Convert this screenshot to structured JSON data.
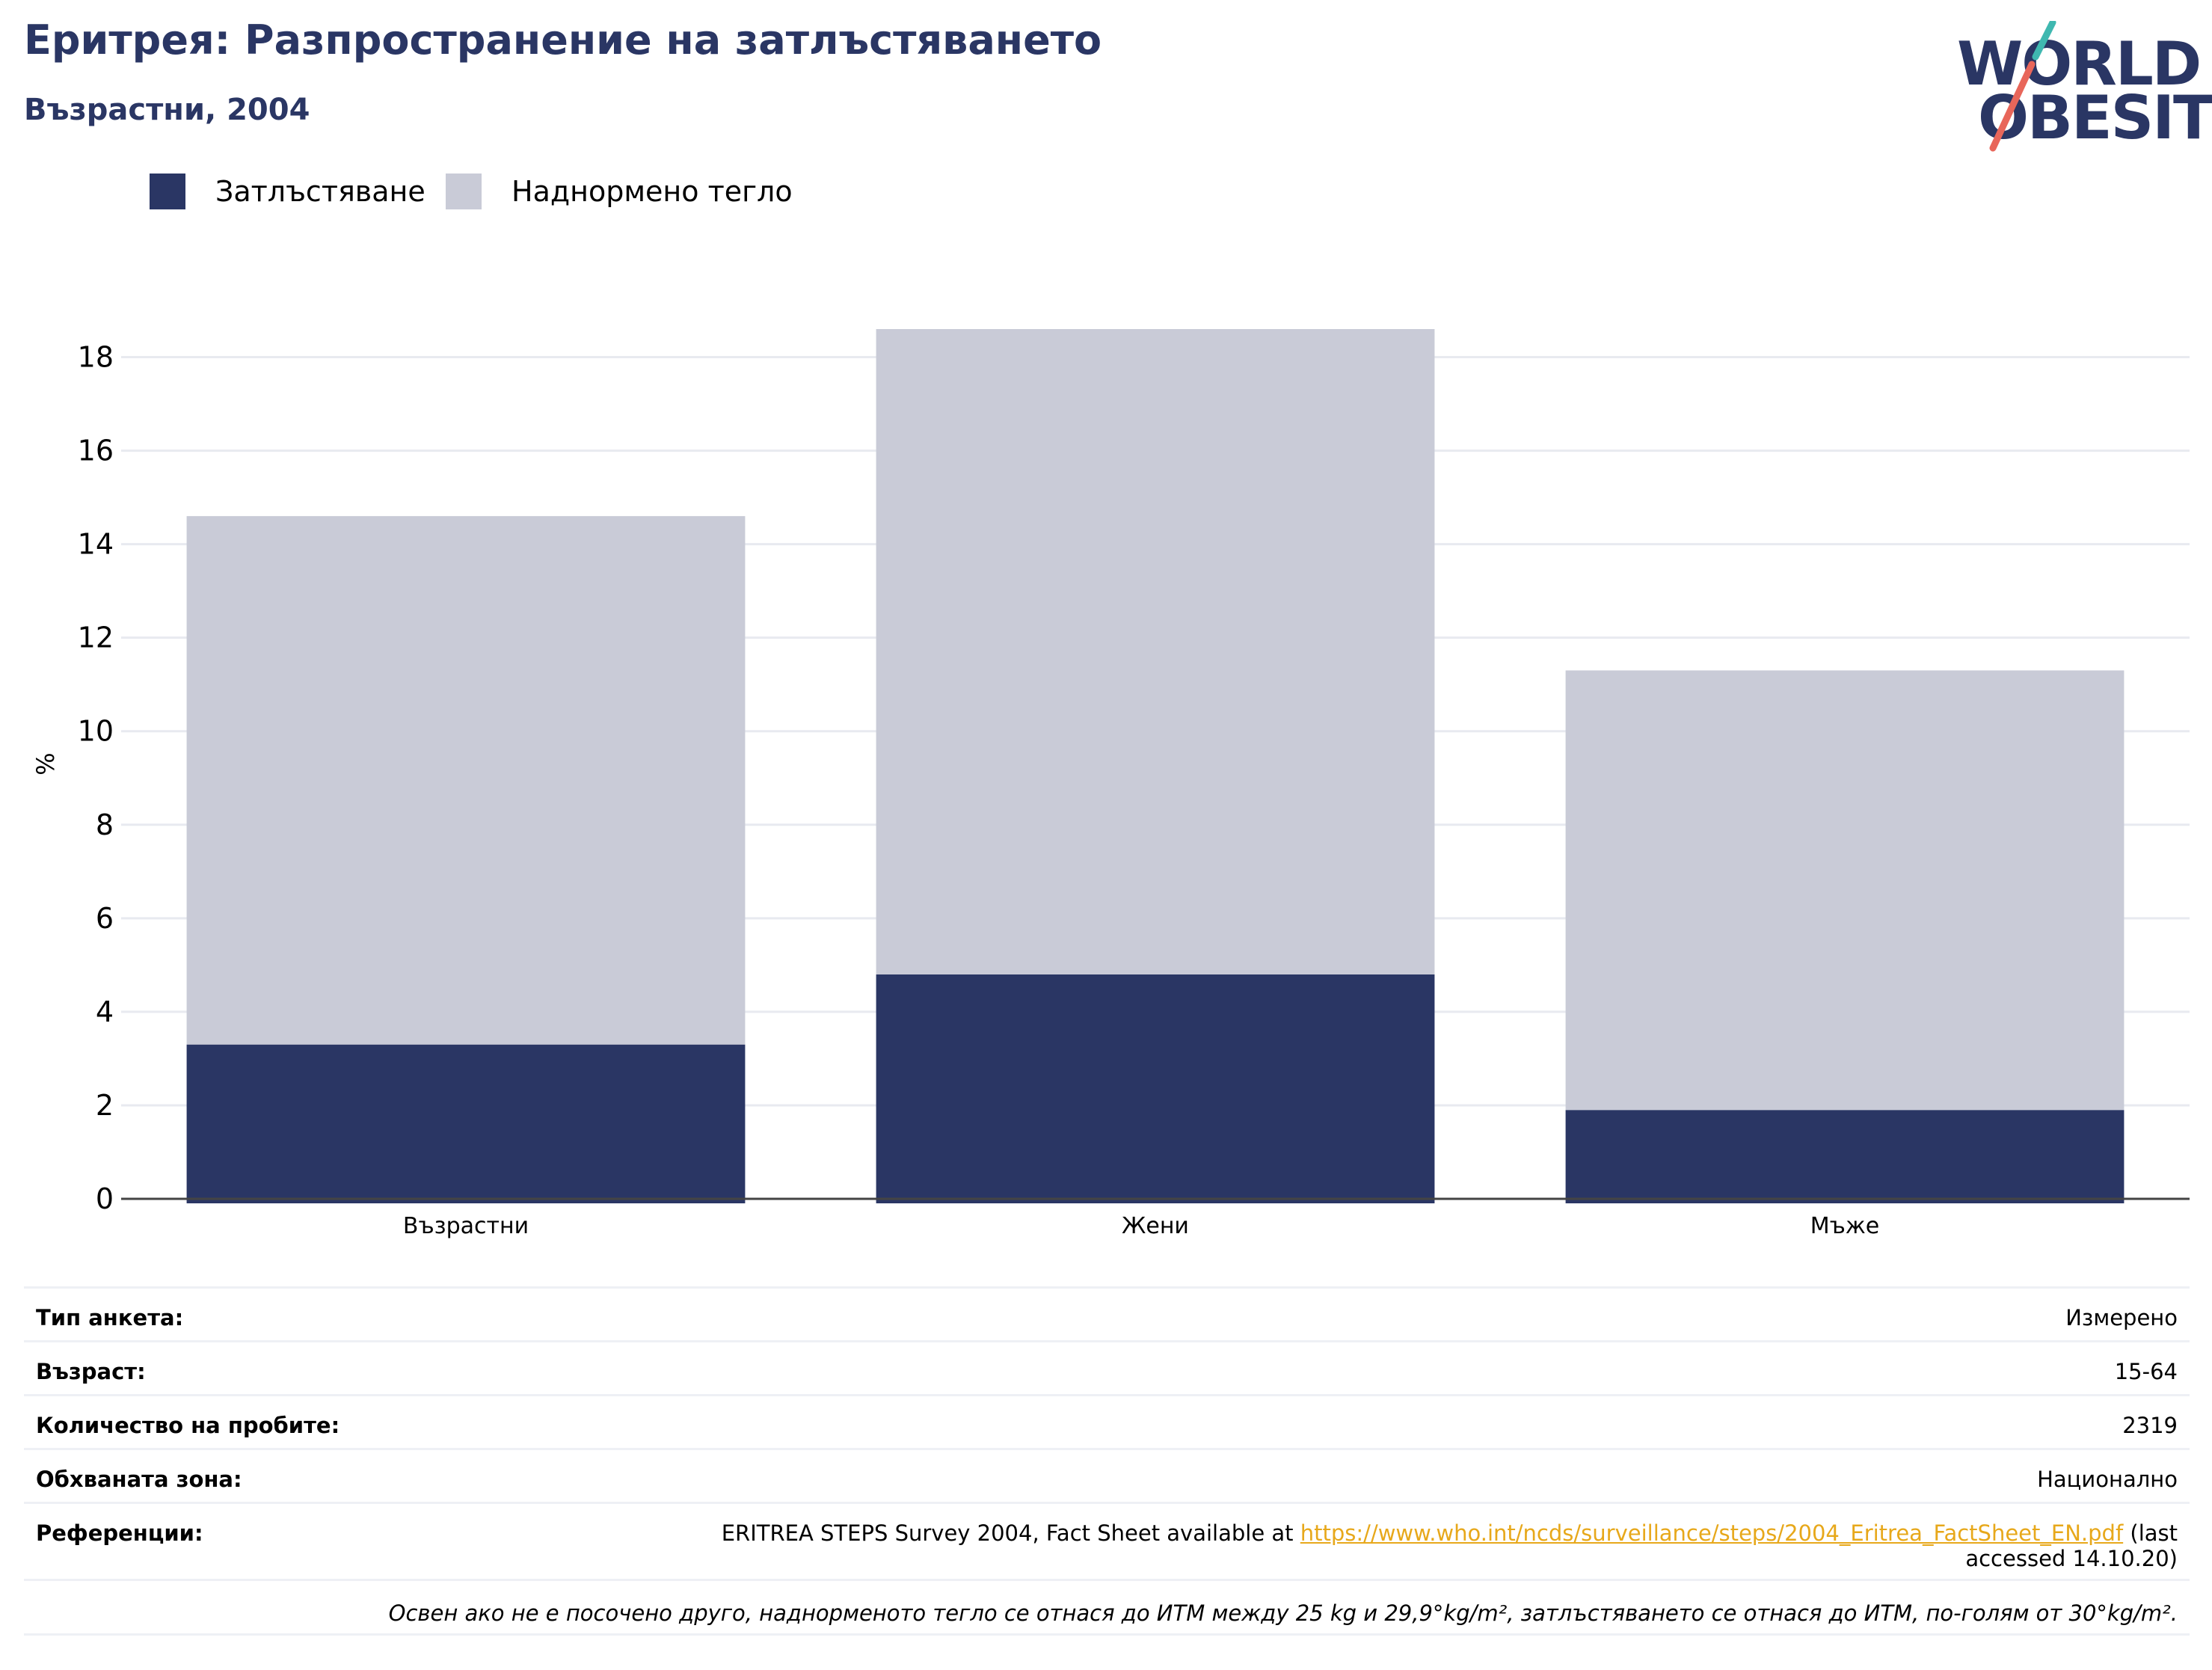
{
  "header": {
    "title": "Еритрея: Разпространение на затлъстяването",
    "subtitle": "Възрастни, 2004"
  },
  "logo": {
    "line1": "WORLD",
    "line2": "OBESITY",
    "colors": {
      "text": "#2a3664",
      "slash_top": "#3fb8b0",
      "slash_bottom": "#e8665a"
    }
  },
  "legend": [
    {
      "label": "Затлъстяване",
      "color": "#2a3664"
    },
    {
      "label": "Наднормено тегло",
      "color": "#c9cbd7"
    }
  ],
  "chart_data": {
    "type": "bar",
    "stacked": true,
    "categories": [
      "Възрастни",
      "Жени",
      "Мъже"
    ],
    "series": [
      {
        "name": "Затлъстяване",
        "values": [
          3.3,
          4.8,
          1.9
        ],
        "color": "#2a3664"
      },
      {
        "name": "Наднормено тегло",
        "values": [
          11.3,
          13.8,
          9.4
        ],
        "color": "#c9cbd7"
      }
    ],
    "ylabel": "%",
    "ylim": [
      0,
      18.6
    ],
    "yticks": [
      0,
      2,
      4,
      6,
      8,
      10,
      12,
      14,
      16,
      18
    ],
    "grid": true,
    "legend_position": "top-left"
  },
  "info": {
    "rows": [
      {
        "label": "Тип анкета:",
        "value": "Измерено"
      },
      {
        "label": "Възраст:",
        "value": "15-64"
      },
      {
        "label": "Количество на пробите:",
        "value": "2319"
      },
      {
        "label": "Обхваната зона:",
        "value": "Национално"
      }
    ],
    "reference": {
      "label": "Референции:",
      "text_before": "ERITREA STEPS Survey 2004, Fact Sheet available at ",
      "link": "https://www.who.int/ncds/surveillance/steps/2004_Eritrea_FactSheet_EN.pdf",
      "text_after": " (last accessed 14.10.20)"
    },
    "note": "Освен ако не е посочено друго, наднорменото тегло се отнася до ИТМ между 25 kg и 29,9°kg/m², затлъстяването се отнася до ИТМ, по-голям от 30°kg/m²."
  }
}
